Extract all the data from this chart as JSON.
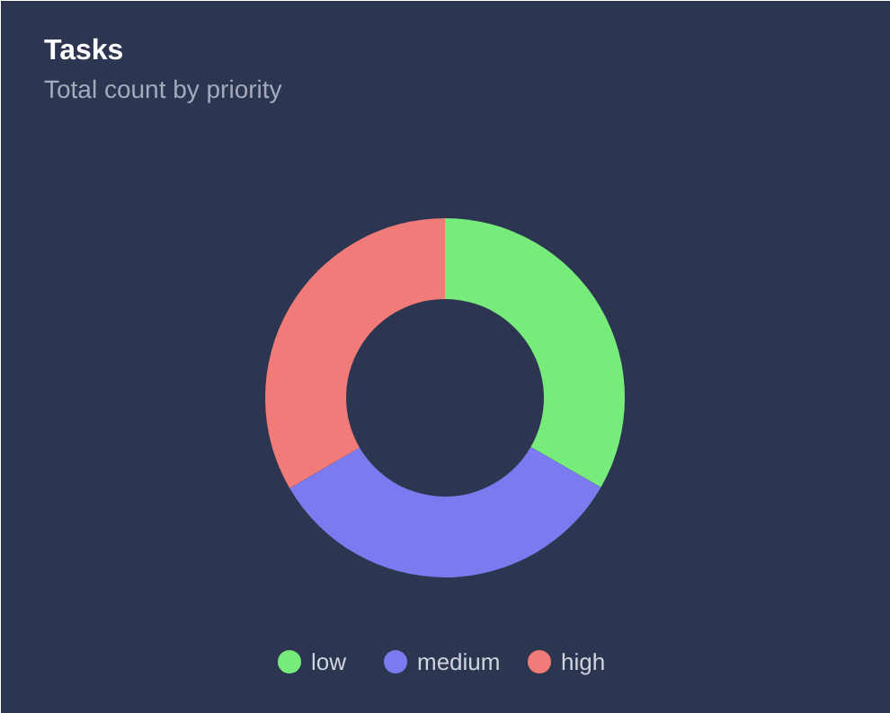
{
  "chart_data": {
    "type": "donut",
    "title": "Tasks",
    "subtitle": "Total count by priority",
    "categories": [
      "low",
      "medium",
      "high"
    ],
    "values": [
      33.3,
      33.3,
      33.4
    ],
    "colors": [
      "#77ec7b",
      "#7b7bef",
      "#f07b78"
    ],
    "legend": "bottom"
  }
}
